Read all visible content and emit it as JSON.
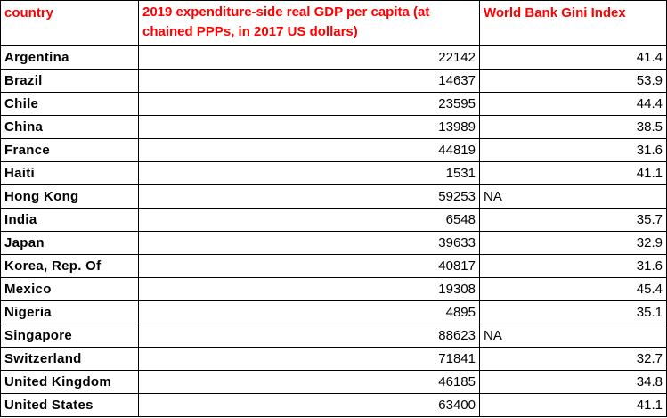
{
  "table": {
    "headers": [
      "country",
      "2019 expenditure-side real GDP per capita (at chained PPPs, in 2017 US dollars)",
      "World Bank Gini Index"
    ],
    "rows": [
      {
        "country": "Argentina",
        "gdp": "22142",
        "gini": "41.4"
      },
      {
        "country": "Brazil",
        "gdp": "14637",
        "gini": "53.9"
      },
      {
        "country": "Chile",
        "gdp": "23595",
        "gini": "44.4"
      },
      {
        "country": "China",
        "gdp": "13989",
        "gini": "38.5"
      },
      {
        "country": "France",
        "gdp": "44819",
        "gini": "31.6"
      },
      {
        "country": "Haiti",
        "gdp": "1531",
        "gini": "41.1"
      },
      {
        "country": "Hong Kong",
        "gdp": "59253",
        "gini": "NA"
      },
      {
        "country": "India",
        "gdp": "6548",
        "gini": "35.7"
      },
      {
        "country": "Japan",
        "gdp": "39633",
        "gini": "32.9"
      },
      {
        "country": "Korea, Rep. Of",
        "gdp": "40817",
        "gini": "31.6"
      },
      {
        "country": "Mexico",
        "gdp": "19308",
        "gini": "45.4"
      },
      {
        "country": "Nigeria",
        "gdp": "4895",
        "gini": "35.1"
      },
      {
        "country": "Singapore",
        "gdp": "88623",
        "gini": "NA"
      },
      {
        "country": "Switzerland",
        "gdp": "71841",
        "gini": "32.7"
      },
      {
        "country": "United Kingdom",
        "gdp": "46185",
        "gini": "34.8"
      },
      {
        "country": "United States",
        "gdp": "63400",
        "gini": "41.1"
      }
    ]
  }
}
